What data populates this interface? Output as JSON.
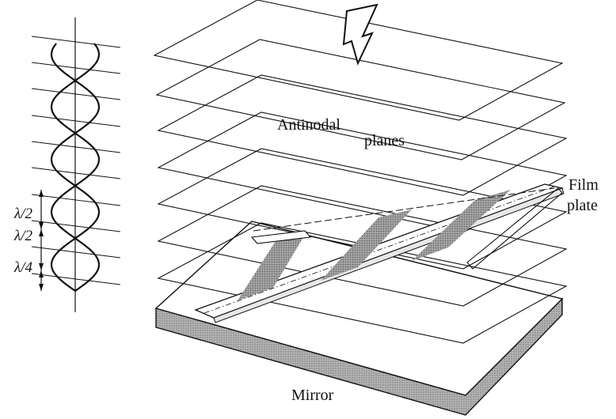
{
  "labels": {
    "antinodal_line1": "Antinodal",
    "antinodal_line2": "planes",
    "film_line1": "Film",
    "film_line2": "plate",
    "mirror": "Mirror",
    "half_wave_1": "λ/2",
    "half_wave_2": "λ/2",
    "quarter_wave": "λ/4"
  },
  "icons": {
    "incident_light": "lightning-arrow-icon"
  },
  "colors": {
    "ink": "#111111",
    "mirror_fill": "#a8a8a8",
    "fringe_fill": "#9a9a9a",
    "paper": "#ffffff"
  }
}
